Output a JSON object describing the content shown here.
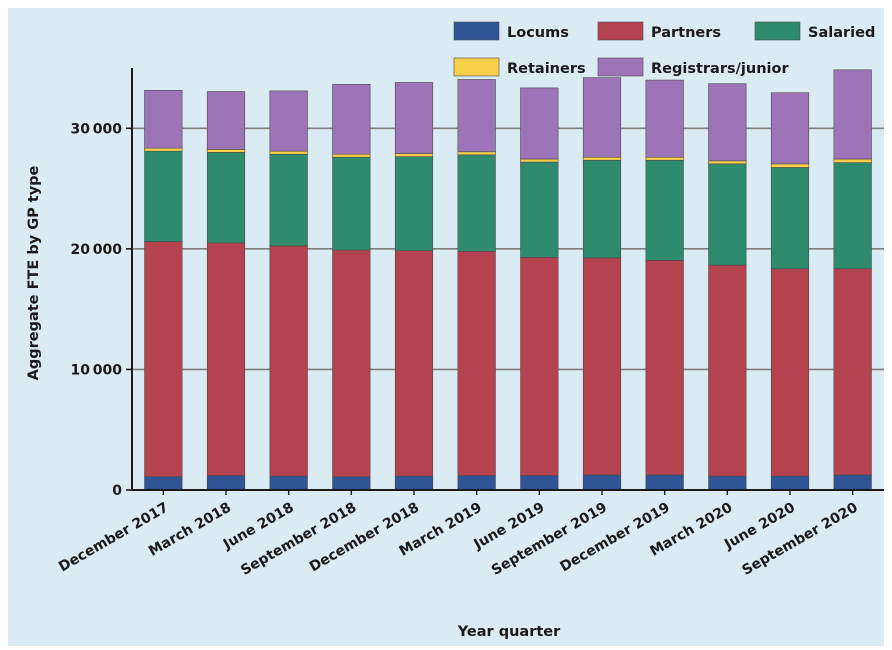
{
  "chart_data": {
    "type": "bar",
    "stacked": true,
    "xlabel": "Year quarter",
    "ylabel": "Aggregate FTE by GP type",
    "ylim": [
      0,
      35000
    ],
    "yticks": [
      0,
      10000,
      20000,
      30000
    ],
    "ytick_labels": [
      "0",
      "10 000",
      "20 000",
      "30 000"
    ],
    "grid": "horizontal",
    "legend_position": "top-right",
    "categories": [
      "December 2017",
      "March 2018",
      "June 2018",
      "September 2018",
      "December 2018",
      "March 2019",
      "June 2019",
      "September 2019",
      "December 2019",
      "March 2020",
      "June 2020",
      "September 2020"
    ],
    "series": [
      {
        "name": "Locums",
        "color": "#2f5597",
        "values": [
          1100,
          1200,
          1150,
          1100,
          1150,
          1200,
          1200,
          1250,
          1250,
          1150,
          1150,
          1250
        ]
      },
      {
        "name": "Partners",
        "color": "#b5434f",
        "values": [
          19500,
          19300,
          19100,
          18800,
          18700,
          18600,
          18100,
          18000,
          17800,
          17500,
          17200,
          17100
        ]
      },
      {
        "name": "Salaried",
        "color": "#2e8b6e",
        "values": [
          7500,
          7500,
          7600,
          7700,
          7800,
          8000,
          7900,
          8100,
          8300,
          8400,
          8400,
          8800
        ]
      },
      {
        "name": "Retainers",
        "color": "#f7cf4a",
        "values": [
          250,
          250,
          250,
          250,
          250,
          250,
          250,
          250,
          250,
          250,
          300,
          300
        ]
      },
      {
        "name": "Registrars/junior",
        "color": "#9e74b8",
        "values": [
          4800,
          4800,
          5000,
          5800,
          5900,
          6000,
          5900,
          6600,
          6400,
          6400,
          5900,
          7400
        ]
      }
    ]
  }
}
